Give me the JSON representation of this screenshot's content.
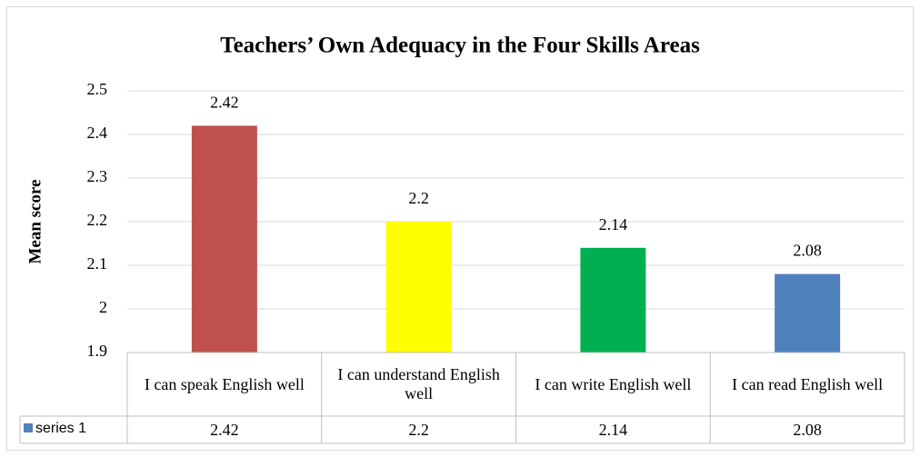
{
  "chart_data": {
    "type": "bar",
    "title": "Teachers’ Own Adequacy in the Four Skills Areas",
    "y_label": "Mean score",
    "categories": [
      "I can speak English well",
      "I can understand English well",
      "I can write English well",
      "I can read English well"
    ],
    "series": [
      {
        "name": "series 1",
        "color": "#4f81bd",
        "colors": [
          "#c0504d",
          "#ffff00",
          "#00b050",
          "#4f81bd"
        ],
        "values": [
          2.42,
          2.2,
          2.14,
          2.08
        ]
      }
    ],
    "ylim": [
      1.9,
      2.5
    ],
    "yticks": [
      1.9,
      2,
      2.1,
      2.2,
      2.3,
      2.4,
      2.5
    ],
    "grid": true
  }
}
